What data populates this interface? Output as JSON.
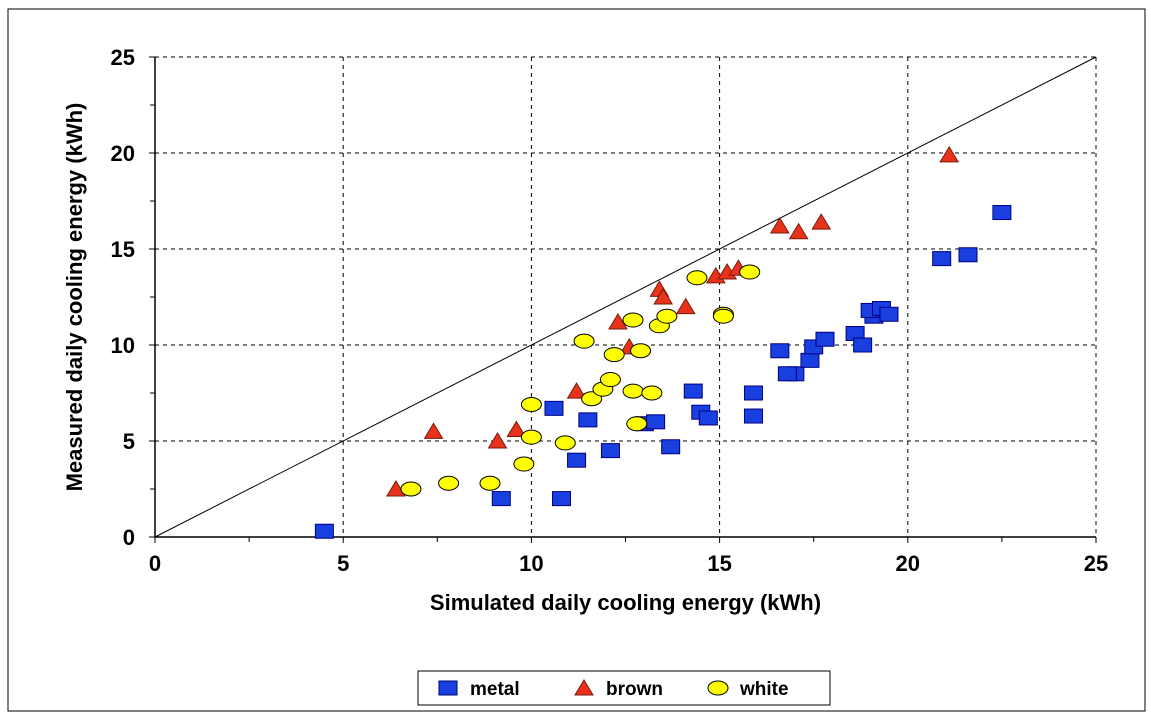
{
  "chart_data": {
    "type": "scatter",
    "xlabel": "Simulated daily cooling energy (kWh)",
    "ylabel": "Measured daily cooling energy (kWh)",
    "xlim": [
      0,
      25
    ],
    "ylim": [
      0,
      25
    ],
    "xticks": [
      "0",
      "5",
      "10",
      "15",
      "20",
      "25"
    ],
    "yticks": [
      "0",
      "5",
      "10",
      "15",
      "20",
      "25"
    ],
    "grid": "dashed",
    "reference_line": "y = x",
    "legend_position": "bottom-center",
    "series": [
      {
        "name": "metal",
        "marker": "square",
        "color": "#1a3fe0",
        "points": [
          [
            4.5,
            0.3
          ],
          [
            9.2,
            2.0
          ],
          [
            10.8,
            2.0
          ],
          [
            11.2,
            4.0
          ],
          [
            12.1,
            4.5
          ],
          [
            10.6,
            6.7
          ],
          [
            11.5,
            6.1
          ],
          [
            13.0,
            5.9
          ],
          [
            13.3,
            6.0
          ],
          [
            13.7,
            4.7
          ],
          [
            14.3,
            7.6
          ],
          [
            14.5,
            6.5
          ],
          [
            14.7,
            6.2
          ],
          [
            15.9,
            7.5
          ],
          [
            15.9,
            6.3
          ],
          [
            16.6,
            9.7
          ],
          [
            17.0,
            8.5
          ],
          [
            16.8,
            8.5
          ],
          [
            17.4,
            9.2
          ],
          [
            17.5,
            9.9
          ],
          [
            17.8,
            10.3
          ],
          [
            18.6,
            10.6
          ],
          [
            18.8,
            10.0
          ],
          [
            19.1,
            11.5
          ],
          [
            19.0,
            11.8
          ],
          [
            19.3,
            11.9
          ],
          [
            19.5,
            11.6
          ],
          [
            20.9,
            14.5
          ],
          [
            21.6,
            14.7
          ],
          [
            22.5,
            16.9
          ]
        ]
      },
      {
        "name": "brown",
        "marker": "triangle",
        "color": "#e8321a",
        "points": [
          [
            6.4,
            2.5
          ],
          [
            7.4,
            5.5
          ],
          [
            9.1,
            5.0
          ],
          [
            9.6,
            5.6
          ],
          [
            11.2,
            7.6
          ],
          [
            12.3,
            11.2
          ],
          [
            12.6,
            9.9
          ],
          [
            13.4,
            12.9
          ],
          [
            13.5,
            12.5
          ],
          [
            14.1,
            12.0
          ],
          [
            14.9,
            13.6
          ],
          [
            15.2,
            13.8
          ],
          [
            15.5,
            14.0
          ],
          [
            16.6,
            16.2
          ],
          [
            17.1,
            15.9
          ],
          [
            17.7,
            16.4
          ],
          [
            21.1,
            19.9
          ]
        ]
      },
      {
        "name": "white",
        "marker": "circle",
        "color": "#ffff00",
        "points": [
          [
            6.8,
            2.5
          ],
          [
            7.8,
            2.8
          ],
          [
            8.9,
            2.8
          ],
          [
            9.8,
            3.8
          ],
          [
            10.0,
            6.9
          ],
          [
            10.0,
            5.2
          ],
          [
            10.9,
            4.9
          ],
          [
            11.4,
            10.2
          ],
          [
            11.6,
            7.2
          ],
          [
            11.9,
            7.7
          ],
          [
            12.1,
            8.2
          ],
          [
            12.2,
            9.5
          ],
          [
            12.7,
            7.6
          ],
          [
            12.7,
            11.3
          ],
          [
            12.8,
            5.9
          ],
          [
            12.9,
            9.7
          ],
          [
            13.2,
            7.5
          ],
          [
            13.4,
            11.0
          ],
          [
            13.6,
            11.5
          ],
          [
            14.4,
            13.5
          ],
          [
            15.1,
            11.6
          ],
          [
            15.1,
            11.5
          ],
          [
            15.8,
            13.8
          ]
        ]
      }
    ]
  }
}
